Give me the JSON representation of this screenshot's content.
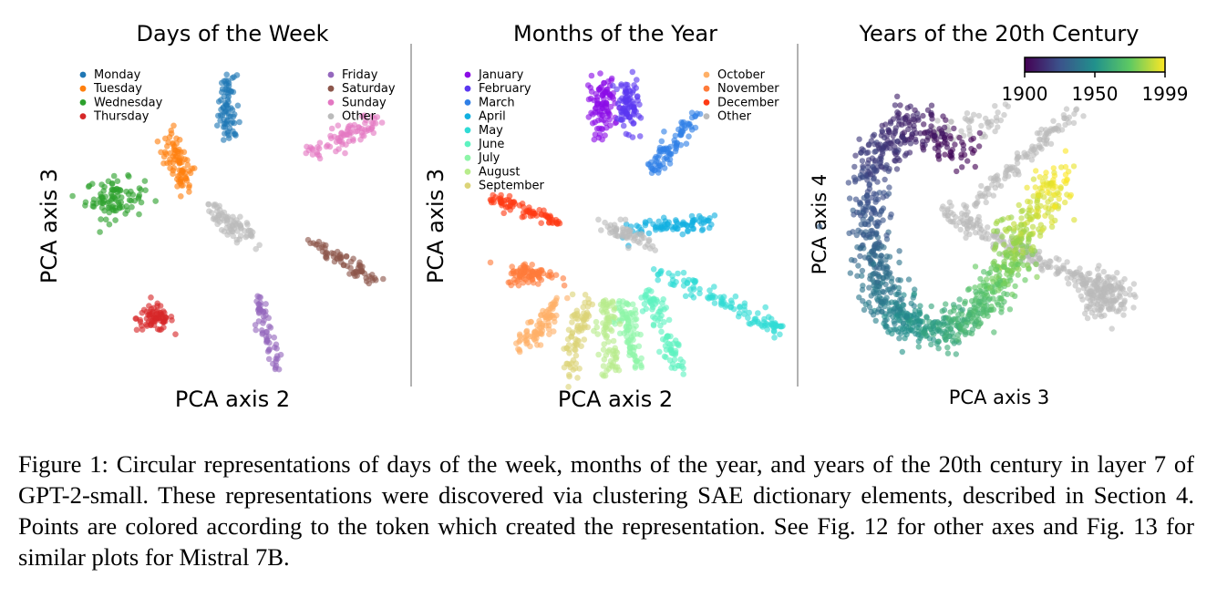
{
  "caption": "Figure 1: Circular representations of days of the week, months of the year, and years of the 20th century in layer 7 of GPT-2-small.  These representations were discovered via clustering SAE dictionary elements, described in Section 4. Points are colored according to the token which created the representation. See Fig. 12 for other axes and Fig. 13 for similar plots for Mistral 7B.",
  "chart_data": [
    {
      "type": "scatter",
      "title": "Days of the Week",
      "xlabel": "PCA axis 2",
      "ylabel": "PCA axis 3",
      "legend_left": [
        "Monday",
        "Tuesday",
        "Wednesday",
        "Thursday"
      ],
      "legend_right": [
        "Friday",
        "Saturday",
        "Sunday",
        "Other"
      ],
      "clusters": [
        {
          "name": "Monday",
          "color": "#1f77b4",
          "shape": "line",
          "x1": -0.05,
          "y1": 0.95,
          "x2": -0.04,
          "y2": 0.55,
          "spread": 0.05,
          "n": 75
        },
        {
          "name": "Tuesday",
          "color": "#ff7f0e",
          "shape": "line",
          "x1": -0.4,
          "y1": 0.55,
          "x2": -0.28,
          "y2": 0.25,
          "spread": 0.06,
          "n": 85
        },
        {
          "name": "Wednesday",
          "color": "#2ca02c",
          "shape": "blob",
          "cx": -0.72,
          "cy": 0.18,
          "rx": 0.16,
          "ry": 0.11,
          "n": 95
        },
        {
          "name": "Thursday",
          "color": "#d62728",
          "shape": "blob",
          "cx": -0.48,
          "cy": -0.55,
          "rx": 0.1,
          "ry": 0.07,
          "n": 75
        },
        {
          "name": "Friday",
          "color": "#9467bd",
          "shape": "line",
          "x1": 0.14,
          "y1": -0.42,
          "x2": 0.24,
          "y2": -0.85,
          "spread": 0.035,
          "n": 60
        },
        {
          "name": "Saturday",
          "color": "#8c564b",
          "shape": "line",
          "x1": 0.48,
          "y1": -0.1,
          "x2": 0.85,
          "y2": -0.32,
          "spread": 0.04,
          "n": 70
        },
        {
          "name": "Sunday",
          "color": "#e377c2",
          "shape": "line",
          "x1": 0.45,
          "y1": 0.45,
          "x2": 0.82,
          "y2": 0.65,
          "spread": 0.06,
          "n": 80
        },
        {
          "name": "Other",
          "color": "#bbbbbb",
          "shape": "line",
          "x1": -0.15,
          "y1": 0.12,
          "x2": 0.1,
          "y2": -0.05,
          "spread": 0.05,
          "n": 80
        }
      ],
      "xlim": [
        -1,
        1
      ],
      "ylim": [
        -1,
        1
      ]
    },
    {
      "type": "scatter",
      "title": "Months of the Year",
      "xlabel": "PCA axis 2",
      "ylabel": "PCA axis 3",
      "legend_left": [
        "January",
        "February",
        "March",
        "April",
        "May",
        "June",
        "July",
        "August",
        "September"
      ],
      "legend_right": [
        "October",
        "November",
        "December",
        "Other"
      ],
      "clusters": [
        {
          "name": "January",
          "color": "#8b0be6",
          "shape": "blob",
          "cx": -0.12,
          "cy": 0.72,
          "rx": 0.08,
          "ry": 0.17,
          "n": 95
        },
        {
          "name": "February",
          "color": "#5a37f0",
          "shape": "blob",
          "cx": 0.03,
          "cy": 0.75,
          "rx": 0.07,
          "ry": 0.16,
          "n": 85
        },
        {
          "name": "March",
          "color": "#2f7fe6",
          "shape": "line",
          "x1": 0.18,
          "y1": 0.35,
          "x2": 0.45,
          "y2": 0.7,
          "spread": 0.05,
          "n": 85
        },
        {
          "name": "April",
          "color": "#12b0e0",
          "shape": "line",
          "x1": 0.05,
          "y1": -0.02,
          "x2": 0.55,
          "y2": 0.05,
          "spread": 0.04,
          "n": 80
        },
        {
          "name": "May",
          "color": "#30dbd5",
          "shape": "line",
          "x1": 0.2,
          "y1": -0.25,
          "x2": 0.95,
          "y2": -0.62,
          "spread": 0.04,
          "n": 110
        },
        {
          "name": "June",
          "color": "#5ef2c0",
          "shape": "line",
          "x1": 0.15,
          "y1": -0.4,
          "x2": 0.35,
          "y2": -0.88,
          "spread": 0.05,
          "n": 85
        },
        {
          "name": "July",
          "color": "#8ef5a8",
          "shape": "line",
          "x1": 0.0,
          "y1": -0.45,
          "x2": 0.1,
          "y2": -0.85,
          "spread": 0.05,
          "n": 85
        },
        {
          "name": "August",
          "color": "#b8ec8c",
          "shape": "line",
          "x1": -0.1,
          "y1": -0.45,
          "x2": -0.08,
          "y2": -0.88,
          "spread": 0.05,
          "n": 80
        },
        {
          "name": "September",
          "color": "#dcd478",
          "shape": "line",
          "x1": -0.22,
          "y1": -0.45,
          "x2": -0.32,
          "y2": -0.9,
          "spread": 0.05,
          "n": 80
        },
        {
          "name": "October",
          "color": "#ffb067",
          "shape": "line",
          "x1": -0.38,
          "y1": -0.45,
          "x2": -0.6,
          "y2": -0.72,
          "spread": 0.05,
          "n": 85
        },
        {
          "name": "November",
          "color": "#ff7b3a",
          "shape": "blob",
          "cx": -0.55,
          "cy": -0.28,
          "rx": 0.13,
          "ry": 0.06,
          "n": 85
        },
        {
          "name": "December",
          "color": "#ff3a14",
          "shape": "line",
          "x1": -0.8,
          "y1": 0.18,
          "x2": -0.4,
          "y2": 0.05,
          "spread": 0.035,
          "n": 80
        },
        {
          "name": "Other",
          "color": "#bbbbbb",
          "shape": "line",
          "x1": -0.1,
          "y1": 0.02,
          "x2": 0.18,
          "y2": -0.1,
          "spread": 0.04,
          "n": 60
        }
      ],
      "xlim": [
        -1,
        1
      ],
      "ylim": [
        -1,
        1
      ]
    },
    {
      "type": "scatter",
      "title": "Years of the 20th Century",
      "xlabel": "PCA axis 3",
      "ylabel": "PCA axis 4",
      "colorbar": {
        "ticks": [
          "1900",
          "1950",
          "1999"
        ],
        "colormap": "viridis"
      },
      "arc_path": [
        [
          -0.15,
          0.45
        ],
        [
          -0.55,
          0.68
        ],
        [
          -0.78,
          0.4
        ],
        [
          -0.8,
          -0.05
        ],
        [
          -0.72,
          -0.4
        ],
        [
          -0.55,
          -0.6
        ],
        [
          -0.3,
          -0.65
        ],
        [
          -0.05,
          -0.45
        ],
        [
          0.08,
          -0.2
        ],
        [
          0.22,
          0.05
        ],
        [
          0.45,
          0.35
        ]
      ],
      "arc_years": [
        1900,
        1999
      ],
      "n_arc_points": 1100,
      "other_clusters": [
        {
          "shape": "line",
          "x1": -0.3,
          "y1": 0.1,
          "x2": 0.72,
          "y2": -0.4,
          "spread": 0.05,
          "n": 220
        },
        {
          "shape": "line",
          "x1": -0.2,
          "y1": 0.1,
          "x2": 0.52,
          "y2": 0.75,
          "spread": 0.04,
          "n": 120
        },
        {
          "shape": "blob",
          "cx": 0.7,
          "cy": -0.4,
          "rx": 0.14,
          "ry": 0.13,
          "n": 150
        },
        {
          "shape": "line",
          "x1": -0.4,
          "y1": 0.6,
          "x2": 0.1,
          "y2": 0.7,
          "spread": 0.08,
          "n": 50
        }
      ],
      "xlim": [
        -1,
        1
      ],
      "ylim": [
        -1,
        1
      ]
    }
  ]
}
